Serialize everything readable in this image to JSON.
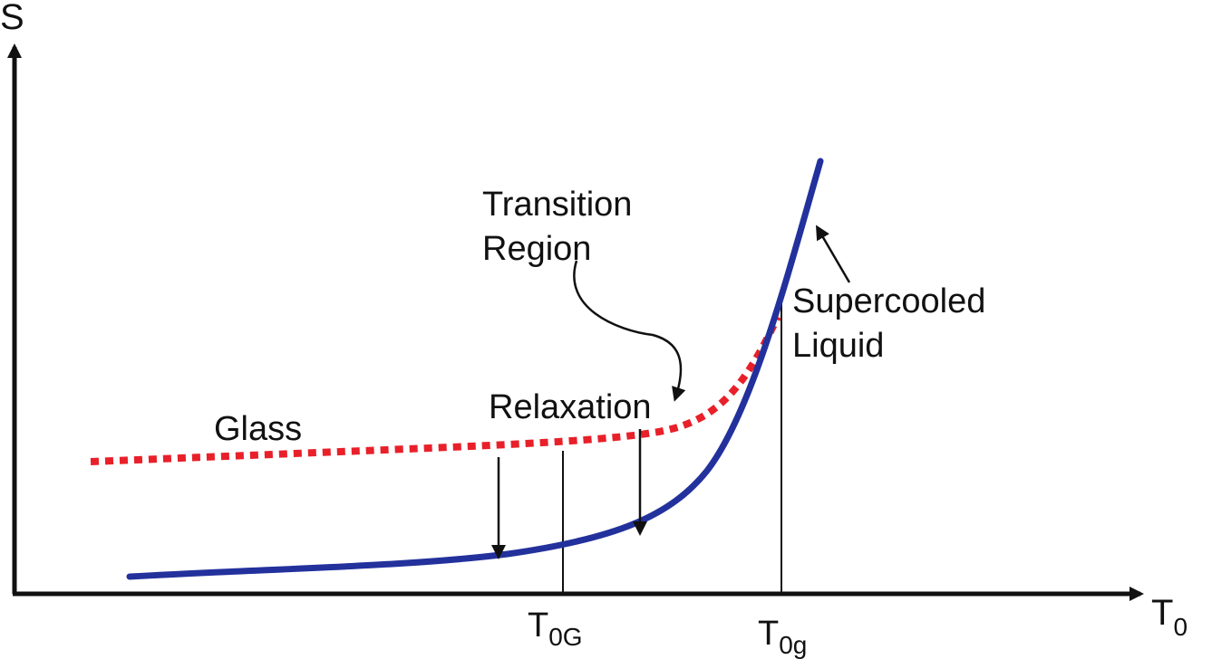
{
  "axes": {
    "y_label": "S",
    "x_label_main": "T",
    "x_label_sub": "0"
  },
  "labels": {
    "transition_line1": "Transition",
    "transition_line2": "Region",
    "supercooled_line1": "Supercooled",
    "supercooled_line2": "Liquid",
    "relaxation": "Relaxation",
    "glass": "Glass"
  },
  "ticks": {
    "t0G_main": "T",
    "t0G_sub": "0G",
    "t0g_main": "T",
    "t0g_sub": "0g"
  },
  "colors": {
    "liquid_curve": "#23319c",
    "glass_curve": "#e8202a",
    "ink": "#111111"
  }
}
